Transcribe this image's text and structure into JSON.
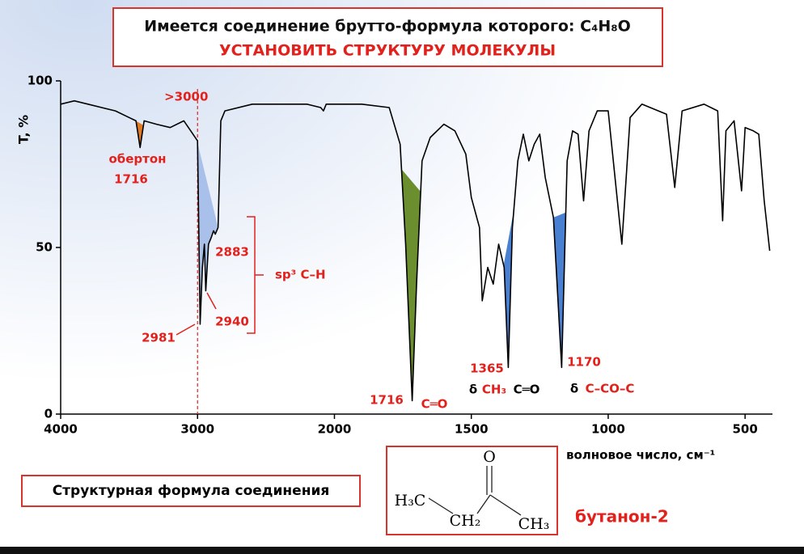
{
  "header": {
    "title": "Имеется соединение брутто-формула которого: C₄H₈O",
    "subtitle": "УСТАНОВИТЬ СТРУКТУРУ МОЛЕКУЛЫ"
  },
  "chart_data": {
    "type": "line",
    "color": "#000000",
    "x_label": "волновое число, см⁻¹",
    "y_label": "T, %",
    "xlim": [
      4000,
      400
    ],
    "ylim": [
      0,
      100
    ],
    "xscale": "tick-spaced",
    "xticks": [
      4000,
      3000,
      2000,
      1500,
      1000,
      500
    ],
    "yticks": [
      0,
      50,
      100
    ],
    "x": [
      4000,
      3900,
      3800,
      3700,
      3600,
      3500,
      3450,
      3420,
      3390,
      3300,
      3200,
      3100,
      3050,
      3000,
      2981,
      2965,
      2950,
      2940,
      2920,
      2900,
      2883,
      2870,
      2850,
      2830,
      2800,
      2600,
      2400,
      2200,
      2100,
      2080,
      2060,
      2000,
      1900,
      1800,
      1760,
      1740,
      1716,
      1700,
      1680,
      1650,
      1600,
      1560,
      1520,
      1500,
      1470,
      1460,
      1440,
      1420,
      1400,
      1380,
      1365,
      1350,
      1330,
      1310,
      1290,
      1270,
      1250,
      1230,
      1200,
      1170,
      1150,
      1130,
      1110,
      1090,
      1070,
      1040,
      1000,
      950,
      920,
      877,
      787,
      757,
      730,
      650,
      600,
      582,
      570,
      540,
      513,
      500,
      470,
      450,
      430,
      410
    ],
    "values": [
      93,
      94,
      93,
      92,
      91,
      89,
      88,
      80,
      88,
      87,
      86,
      88,
      85,
      82,
      27,
      44,
      51,
      37,
      51,
      53,
      55,
      54,
      56,
      88,
      91,
      93,
      93,
      93,
      92,
      91,
      93,
      93,
      93,
      92,
      81,
      51,
      4,
      39,
      76,
      83,
      87,
      85,
      78,
      65,
      56,
      34,
      44,
      39,
      51,
      44,
      14,
      56,
      76,
      84,
      76,
      81,
      84,
      71,
      59,
      14,
      76,
      85,
      84,
      64,
      85,
      91,
      91,
      51,
      89,
      93,
      90,
      68,
      91,
      93,
      91,
      58,
      85,
      88,
      67,
      86,
      85,
      84,
      64,
      49
    ],
    "marker_line": {
      "x": 3000,
      "label": ">3000",
      "color": "#e3211c"
    },
    "shaded_bands": [
      {
        "from": 3450,
        "to": 3395,
        "color": "#e07a20"
      },
      {
        "from": 3005,
        "to": 2850,
        "color": "#a9c1ea"
      },
      {
        "from": 1755,
        "to": 1685,
        "color": "#6b8e2e"
      },
      {
        "from": 1382,
        "to": 1345,
        "color": "#4a80d2"
      },
      {
        "from": 1200,
        "to": 1155,
        "color": "#4a80d2"
      }
    ],
    "annotations": {
      "overtone": "обертон",
      "overtone_freq": "1716",
      "a2883": "2883",
      "a2940": "2940",
      "a2981": "2981",
      "sp3": "sp³ C–H",
      "co_freq": "1716",
      "co": "C═O",
      "a1365": "1365",
      "delta1": "δ",
      "ch3": "CH₃",
      "co2": "C═O",
      "a1170": "1170",
      "delta2": "δ",
      "ccoc": "C–CO–C"
    }
  },
  "structure": {
    "label": "Структурная формула соединения",
    "atoms": {
      "o": "O",
      "h3c": "H₃C",
      "ch2": "CH₂",
      "ch3": "CH₃"
    },
    "name": "бутанон-2"
  }
}
